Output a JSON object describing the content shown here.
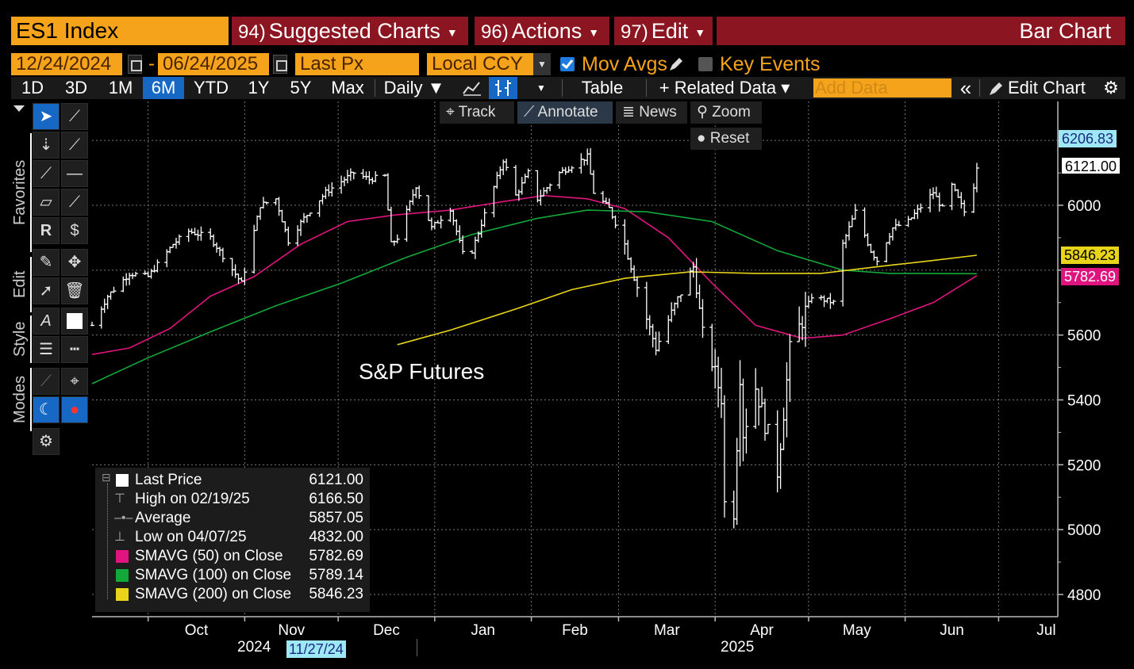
{
  "header": {
    "ticker": "ES1 Index",
    "menus": [
      {
        "num": "94)",
        "label": "Suggested Charts"
      },
      {
        "num": "96)",
        "label": "Actions"
      },
      {
        "num": "97)",
        "label": "Edit"
      }
    ],
    "chart_kind": "Bar Chart"
  },
  "options": {
    "start_date": "12/24/2024",
    "end_date": "06/24/2025",
    "field": "Last Px",
    "currency": "Local CCY",
    "mov_avgs_label": "Mov Avgs",
    "mov_avgs_checked": true,
    "key_events_label": "Key Events",
    "key_events_checked": false
  },
  "toolbar": {
    "periods": [
      "1D",
      "3D",
      "1M",
      "6M",
      "YTD",
      "1Y",
      "5Y",
      "Max"
    ],
    "active_period": "6M",
    "frequency": "Daily ▼",
    "table_label": "Table",
    "related_label": "+ Related Data ▾",
    "add_data_placeholder": "Add Data",
    "collapse_label": "«",
    "edit_chart_label": "Edit Chart"
  },
  "left_tabs": {
    "favorites": "Favorites",
    "edit": "Edit",
    "style": "Style",
    "modes": "Modes"
  },
  "overlay": {
    "track": "Track",
    "annotate": "Annotate",
    "news": "News",
    "zoom": "Zoom",
    "reset": "Reset"
  },
  "annotation_text": "S&P Futures",
  "price_tags": {
    "hi_cross": "6206.83",
    "last": "6121.00",
    "sma200": "5846.23",
    "sma50": "5782.69"
  },
  "colors": {
    "sma50": "#e0147e",
    "sma100": "#12a83a",
    "sma200": "#e8d51a",
    "price": "#ffffff",
    "tag_cyan": "#9ee8f5",
    "accent_orange": "#f5a31a",
    "menu_red": "#8b1520",
    "active_blue": "#1768c4"
  },
  "legend": [
    {
      "label": "Last Price",
      "value": "6121.00",
      "color": "#ffffff",
      "marker": "box"
    },
    {
      "label": "High on 02/19/25",
      "value": "6166.50",
      "marker": "T"
    },
    {
      "label": "Average",
      "value": "5857.05",
      "marker": "avg"
    },
    {
      "label": "Low on 04/07/25",
      "value": "4832.00",
      "marker": "L"
    },
    {
      "label": "SMAVG (50)  on Close",
      "value": "5782.69",
      "color": "#e0147e",
      "marker": "box"
    },
    {
      "label": "SMAVG (100)  on Close",
      "value": "5789.14",
      "color": "#12a83a",
      "marker": "box"
    },
    {
      "label": "SMAVG (200)  on Close",
      "value": "5846.23",
      "color": "#e8d51a",
      "marker": "box"
    }
  ],
  "axis_footer": {
    "year_left": "2024",
    "crosshair_date": "11/27/24",
    "year_right": "2025"
  },
  "chart_data": {
    "type": "bar",
    "title": "",
    "ylim": [
      4750,
      6300
    ],
    "yticks": [
      4800,
      5000,
      5200,
      5400,
      5600,
      5800,
      6000,
      6200
    ],
    "ytick_labels": [
      "4800",
      "5000",
      "5200",
      "5400",
      "5600",
      "",
      "6000",
      ""
    ],
    "grid": true,
    "x_labels": [
      "Oct",
      "Nov",
      "Dec",
      "Jan",
      "Feb",
      "Mar",
      "Apr",
      "May",
      "Jun",
      "Jul"
    ],
    "x_label_dates": [
      "2024-10-01",
      "2024-11-01",
      "2024-12-01",
      "2025-01-01",
      "2025-02-01",
      "2025-03-01",
      "2025-04-01",
      "2025-05-01",
      "2025-06-01",
      "2025-07-01"
    ],
    "x_range": [
      "2024-09-13",
      "2025-07-20"
    ],
    "price_anchors": [
      [
        "2024-09-13",
        5630
      ],
      [
        "2024-09-18",
        5720
      ],
      [
        "2024-09-25",
        5790
      ],
      [
        "2024-10-01",
        5780
      ],
      [
        "2024-10-09",
        5880
      ],
      [
        "2024-10-14",
        5920
      ],
      [
        "2024-10-21",
        5900
      ],
      [
        "2024-10-31",
        5760
      ],
      [
        "2024-11-06",
        6000
      ],
      [
        "2024-11-11",
        6020
      ],
      [
        "2024-11-15",
        5890
      ],
      [
        "2024-11-20",
        5960
      ],
      [
        "2024-11-27",
        6040
      ],
      [
        "2024-12-06",
        6100
      ],
      [
        "2024-12-11",
        6080
      ],
      [
        "2024-12-16",
        6090
      ],
      [
        "2024-12-18",
        5880
      ],
      [
        "2024-12-20",
        5900
      ],
      [
        "2024-12-26",
        6060
      ],
      [
        "2024-12-31",
        5930
      ],
      [
        "2025-01-06",
        5990
      ],
      [
        "2025-01-10",
        5850
      ],
      [
        "2025-01-13",
        5860
      ],
      [
        "2025-01-23",
        6140
      ],
      [
        "2025-01-27",
        6030
      ],
      [
        "2025-01-31",
        6100
      ],
      [
        "2025-02-03",
        6020
      ],
      [
        "2025-02-10",
        6100
      ],
      [
        "2025-02-19",
        6150
      ],
      [
        "2025-02-21",
        6040
      ],
      [
        "2025-02-26",
        5990
      ],
      [
        "2025-03-03",
        5880
      ],
      [
        "2025-03-10",
        5650
      ],
      [
        "2025-03-13",
        5560
      ],
      [
        "2025-03-19",
        5690
      ],
      [
        "2025-03-25",
        5810
      ],
      [
        "2025-03-28",
        5610
      ],
      [
        "2025-04-03",
        5410
      ],
      [
        "2025-04-04",
        5080
      ],
      [
        "2025-04-07",
        5060
      ],
      [
        "2025-04-09",
        5480
      ],
      [
        "2025-04-10",
        5300
      ],
      [
        "2025-04-14",
        5440
      ],
      [
        "2025-04-21",
        5180
      ],
      [
        "2025-04-25",
        5550
      ],
      [
        "2025-05-02",
        5720
      ],
      [
        "2025-05-09",
        5700
      ],
      [
        "2025-05-12",
        5880
      ],
      [
        "2025-05-16",
        5980
      ],
      [
        "2025-05-21",
        5860
      ],
      [
        "2025-05-23",
        5830
      ],
      [
        "2025-05-28",
        5930
      ],
      [
        "2025-06-02",
        5950
      ],
      [
        "2025-06-10",
        6040
      ],
      [
        "2025-06-13",
        5990
      ],
      [
        "2025-06-16",
        6060
      ],
      [
        "2025-06-20",
        5980
      ],
      [
        "2025-06-23",
        6060
      ],
      [
        "2025-06-24",
        6121
      ]
    ],
    "series": [
      {
        "name": "SMAVG (50)  on Close",
        "color": "#e0147e",
        "points": [
          [
            "2024-09-13",
            5540
          ],
          [
            "2024-09-25",
            5560
          ],
          [
            "2024-10-08",
            5620
          ],
          [
            "2024-10-21",
            5720
          ],
          [
            "2024-11-04",
            5780
          ],
          [
            "2024-11-19",
            5880
          ],
          [
            "2024-12-04",
            5950
          ],
          [
            "2024-12-19",
            5970
          ],
          [
            "2025-01-06",
            5985
          ],
          [
            "2025-01-22",
            6010
          ],
          [
            "2025-02-05",
            6030
          ],
          [
            "2025-02-19",
            6020
          ],
          [
            "2025-03-03",
            5990
          ],
          [
            "2025-03-17",
            5900
          ],
          [
            "2025-03-31",
            5760
          ],
          [
            "2025-04-14",
            5630
          ],
          [
            "2025-04-29",
            5590
          ],
          [
            "2025-05-12",
            5600
          ],
          [
            "2025-05-27",
            5650
          ],
          [
            "2025-06-10",
            5700
          ],
          [
            "2025-06-24",
            5783
          ]
        ]
      },
      {
        "name": "SMAVG (100)  on Close",
        "color": "#12a83a",
        "points": [
          [
            "2024-09-13",
            5450
          ],
          [
            "2024-10-01",
            5530
          ],
          [
            "2024-10-21",
            5610
          ],
          [
            "2024-11-11",
            5690
          ],
          [
            "2024-12-02",
            5760
          ],
          [
            "2024-12-23",
            5840
          ],
          [
            "2025-01-13",
            5910
          ],
          [
            "2025-02-03",
            5960
          ],
          [
            "2025-02-19",
            5985
          ],
          [
            "2025-03-10",
            5980
          ],
          [
            "2025-03-31",
            5950
          ],
          [
            "2025-04-21",
            5860
          ],
          [
            "2025-05-12",
            5800
          ],
          [
            "2025-05-27",
            5790
          ],
          [
            "2025-06-24",
            5789
          ]
        ]
      },
      {
        "name": "SMAVG (200)  on Close",
        "color": "#e8d51a",
        "points": [
          [
            "2024-12-20",
            5570
          ],
          [
            "2025-01-06",
            5615
          ],
          [
            "2025-01-27",
            5680
          ],
          [
            "2025-02-14",
            5740
          ],
          [
            "2025-03-03",
            5775
          ],
          [
            "2025-03-24",
            5795
          ],
          [
            "2025-04-14",
            5790
          ],
          [
            "2025-05-05",
            5790
          ],
          [
            "2025-05-27",
            5815
          ],
          [
            "2025-06-10",
            5830
          ],
          [
            "2025-06-24",
            5846
          ]
        ]
      }
    ]
  }
}
